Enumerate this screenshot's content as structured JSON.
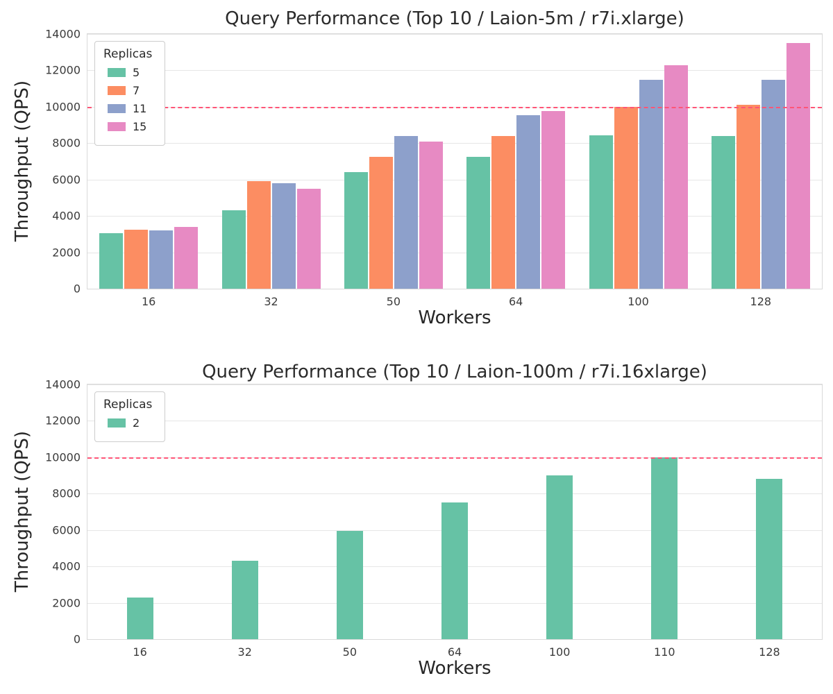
{
  "figure": {
    "background": "#ffffff"
  },
  "chart_data": [
    {
      "type": "bar",
      "title": "Query Performance (Top 10 / Laion-5m / r7i.xlarge)",
      "xlabel": "Workers",
      "ylabel": "Throughput (QPS)",
      "ylim": [
        0,
        14000
      ],
      "yticks": [
        0,
        2000,
        4000,
        6000,
        8000,
        10000,
        12000,
        14000
      ],
      "grid": true,
      "legend_title": "Replicas",
      "legend_position": "upper left",
      "ref_line": 10000,
      "ref_line_color": "#ff5577",
      "categories": [
        "16",
        "32",
        "50",
        "64",
        "100",
        "128"
      ],
      "series": [
        {
          "name": "5",
          "color": "#66c2a5",
          "values": [
            3050,
            4300,
            6400,
            7250,
            8450,
            8400
          ]
        },
        {
          "name": "7",
          "color": "#fc8d62",
          "values": [
            3250,
            5900,
            7250,
            8400,
            10000,
            10100
          ]
        },
        {
          "name": "11",
          "color": "#8da0cb",
          "values": [
            3200,
            5800,
            8400,
            9550,
            11500,
            11500
          ]
        },
        {
          "name": "15",
          "color": "#e78ac3",
          "values": [
            3380,
            5500,
            8100,
            9770,
            12300,
            13500
          ]
        }
      ]
    },
    {
      "type": "bar",
      "title": "Query Performance (Top 10 / Laion-100m / r7i.16xlarge)",
      "xlabel": "Workers",
      "ylabel": "Throughput (QPS)",
      "ylim": [
        0,
        14000
      ],
      "yticks": [
        0,
        2000,
        4000,
        6000,
        8000,
        10000,
        12000,
        14000
      ],
      "grid": true,
      "legend_title": "Replicas",
      "legend_position": "upper left",
      "ref_line": 10000,
      "ref_line_color": "#ff5577",
      "categories": [
        "16",
        "32",
        "50",
        "64",
        "100",
        "110",
        "128"
      ],
      "series": [
        {
          "name": "2",
          "color": "#66c2a5",
          "values": [
            2300,
            4300,
            5950,
            7500,
            9000,
            10000,
            8800
          ]
        }
      ]
    }
  ]
}
